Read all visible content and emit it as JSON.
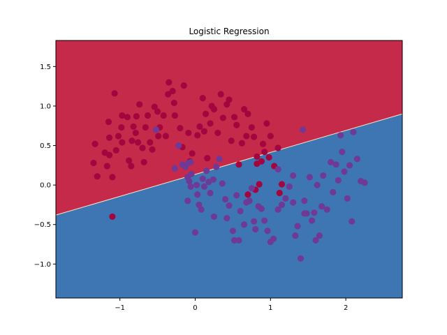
{
  "chart_data": {
    "type": "scatter",
    "title": "Logistic Regression",
    "xlabel": "",
    "ylabel": "",
    "xlim": [
      -1.85,
      2.75
    ],
    "ylim": [
      -1.43,
      1.83
    ],
    "xticks": [
      -1,
      0,
      1,
      2
    ],
    "xtick_labels": [
      "−1",
      "0",
      "1",
      "2"
    ],
    "yticks": [
      -1.0,
      -0.5,
      0.0,
      0.5,
      1.0,
      1.5
    ],
    "ytick_labels": [
      "−1.0",
      "−0.5",
      "0.0",
      "0.5",
      "1.0",
      "1.5"
    ],
    "grid": false,
    "decision_boundary": {
      "x": [
        -1.85,
        2.75
      ],
      "y": [
        -0.38,
        0.9
      ]
    },
    "region_colors": {
      "upper": "#c52a4a",
      "lower": "#3e76b4"
    },
    "series": [
      {
        "color": "#a3053f",
        "points": [
          [
            -1.35,
            0.28
          ],
          [
            -1.33,
            0.52
          ],
          [
            -1.3,
            0.11
          ],
          [
            -1.2,
            0.41
          ],
          [
            -1.17,
            0.24
          ],
          [
            -1.14,
            0.38
          ],
          [
            -1.14,
            0.6
          ],
          [
            -1.15,
            0.8
          ],
          [
            -1.1,
            0.1
          ],
          [
            -1.07,
            1.16
          ],
          [
            -1.05,
            0.44
          ],
          [
            -1.02,
            0.62
          ],
          [
            -0.98,
            0.73
          ],
          [
            -0.97,
            0.54
          ],
          [
            -0.97,
            0.88
          ],
          [
            -0.9,
            0.86
          ],
          [
            -0.88,
            0.31
          ],
          [
            -0.85,
            0.24
          ],
          [
            -0.84,
            0.56
          ],
          [
            -0.82,
            0.74
          ],
          [
            -0.79,
            0.66
          ],
          [
            -0.78,
            0.87
          ],
          [
            -0.76,
            0.54
          ],
          [
            -0.74,
            1.02
          ],
          [
            -0.7,
            0.47
          ],
          [
            -0.68,
            0.29
          ],
          [
            -0.66,
            0.73
          ],
          [
            -0.63,
            0.88
          ],
          [
            -0.6,
            0.54
          ],
          [
            -0.57,
            0.45
          ],
          [
            -0.54,
            0.99
          ],
          [
            -0.5,
            0.93
          ],
          [
            -0.49,
            0.62
          ],
          [
            -0.47,
            0.73
          ],
          [
            -0.42,
            0.88
          ],
          [
            -0.39,
            0.62
          ],
          [
            -0.36,
            1.15
          ],
          [
            -0.35,
            1.3
          ],
          [
            -0.3,
            1.19
          ],
          [
            -0.28,
            1.04
          ],
          [
            -0.27,
            0.88
          ],
          [
            -0.2,
            0.72
          ],
          [
            -0.17,
            0.48
          ],
          [
            -0.15,
            1.26
          ],
          [
            -0.09,
            0.66
          ],
          [
            -0.07,
            0.3
          ],
          [
            -0.04,
            0.4
          ],
          [
            0.03,
            0.63
          ],
          [
            0.06,
            0.74
          ],
          [
            0.1,
            1.1
          ],
          [
            0.12,
            0.68
          ],
          [
            0.14,
            0.9
          ],
          [
            0.16,
            0.34
          ],
          [
            0.2,
            0.78
          ],
          [
            0.22,
            1.0
          ],
          [
            0.25,
            0.96
          ],
          [
            0.3,
            0.66
          ],
          [
            0.34,
            1.15
          ],
          [
            0.37,
            0.85
          ],
          [
            0.42,
            1.02
          ],
          [
            0.45,
            1.08
          ],
          [
            0.48,
            0.56
          ],
          [
            0.52,
            0.86
          ],
          [
            0.55,
            0.76
          ],
          [
            0.58,
            0.26
          ],
          [
            0.62,
            0.53
          ],
          [
            0.65,
            0.96
          ],
          [
            0.68,
            0.62
          ],
          [
            0.7,
            0.9
          ],
          [
            0.75,
            0.73
          ],
          [
            0.78,
            0.61
          ],
          [
            0.82,
            0.27
          ],
          [
            0.85,
            0.01
          ],
          [
            0.9,
            0.52
          ],
          [
            0.95,
            0.78
          ],
          [
            0.98,
            0.35
          ],
          [
            1.0,
            0.62
          ],
          [
            1.05,
            0.24
          ],
          [
            1.1,
            0.47
          ],
          [
            1.12,
            -0.1
          ],
          [
            1.15,
            0.01
          ],
          [
            0.7,
            -0.12
          ],
          [
            0.8,
            -0.06
          ],
          [
            -1.1,
            -0.4
          ],
          [
            0.88,
            0.3
          ],
          [
            0.92,
            0.42
          ],
          [
            0.82,
            0.36
          ]
        ]
      },
      {
        "color": "#6e3a95",
        "points": [
          [
            -0.52,
            0.7
          ],
          [
            -0.22,
            0.5
          ],
          [
            -0.27,
            0.21
          ],
          [
            -0.17,
            0.26
          ],
          [
            -0.13,
            0.23
          ],
          [
            -0.09,
            0.28
          ],
          [
            -0.06,
            0.29
          ],
          [
            -0.1,
            0.1
          ],
          [
            -0.05,
            0.14
          ],
          [
            -0.08,
            0.05
          ],
          [
            -0.06,
            -0.02
          ],
          [
            0.02,
            0.0
          ],
          [
            0.03,
            -0.12
          ],
          [
            0.05,
            -0.25
          ],
          [
            0.08,
            -0.31
          ],
          [
            0.1,
            0.08
          ],
          [
            0.12,
            -0.02
          ],
          [
            0.15,
            0.18
          ],
          [
            0.18,
            0.04
          ],
          [
            0.2,
            -0.1
          ],
          [
            0.24,
            0.07
          ],
          [
            0.28,
            0.23
          ],
          [
            0.32,
            0.33
          ],
          [
            0.36,
            0.02
          ],
          [
            0.4,
            -0.18
          ],
          [
            0.42,
            -0.42
          ],
          [
            0.45,
            -0.26
          ],
          [
            0.5,
            -0.58
          ],
          [
            0.52,
            -0.7
          ],
          [
            0.55,
            -0.13
          ],
          [
            0.58,
            -0.7
          ],
          [
            0.6,
            -0.33
          ],
          [
            0.65,
            -0.5
          ],
          [
            0.68,
            -0.22
          ],
          [
            0.72,
            -0.2
          ],
          [
            0.75,
            -0.04
          ],
          [
            0.78,
            -0.46
          ],
          [
            0.8,
            -0.56
          ],
          [
            0.84,
            -0.27
          ],
          [
            0.88,
            -0.3
          ],
          [
            0.92,
            -0.45
          ],
          [
            0.96,
            -0.58
          ],
          [
            1.0,
            -0.72
          ],
          [
            1.04,
            -0.68
          ],
          [
            1.1,
            -0.31
          ],
          [
            1.15,
            -0.25
          ],
          [
            1.2,
            -0.17
          ],
          [
            1.25,
            -0.02
          ],
          [
            1.3,
            -0.22
          ],
          [
            1.33,
            -0.64
          ],
          [
            1.36,
            -0.52
          ],
          [
            1.4,
            -0.93
          ],
          [
            1.45,
            -0.2
          ],
          [
            1.48,
            -0.36
          ],
          [
            1.52,
            0.1
          ],
          [
            1.55,
            -0.45
          ],
          [
            1.58,
            -0.35
          ],
          [
            1.62,
            0.0
          ],
          [
            1.65,
            -0.64
          ],
          [
            1.68,
            -0.27
          ],
          [
            1.7,
            0.12
          ],
          [
            1.75,
            -0.31
          ],
          [
            1.8,
            0.29
          ],
          [
            1.83,
            -0.09
          ],
          [
            1.87,
            0.26
          ],
          [
            1.9,
            0.06
          ],
          [
            1.93,
            0.63
          ],
          [
            1.95,
            0.42
          ],
          [
            1.98,
            0.17
          ],
          [
            2.02,
            -0.17
          ],
          [
            2.05,
            0.25
          ],
          [
            2.08,
            -0.46
          ],
          [
            2.1,
            0.67
          ],
          [
            2.15,
            0.33
          ],
          [
            2.2,
            0.05
          ],
          [
            2.25,
            0.03
          ],
          [
            1.43,
            0.7
          ],
          [
            1.1,
            0.2
          ],
          [
            -0.1,
            -0.2
          ],
          [
            0.25,
            -0.4
          ],
          [
            0.0,
            -0.6
          ],
          [
            1.6,
            -0.7
          ],
          [
            1.3,
            0.12
          ],
          [
            1.45,
            -0.36
          ]
        ]
      }
    ]
  }
}
